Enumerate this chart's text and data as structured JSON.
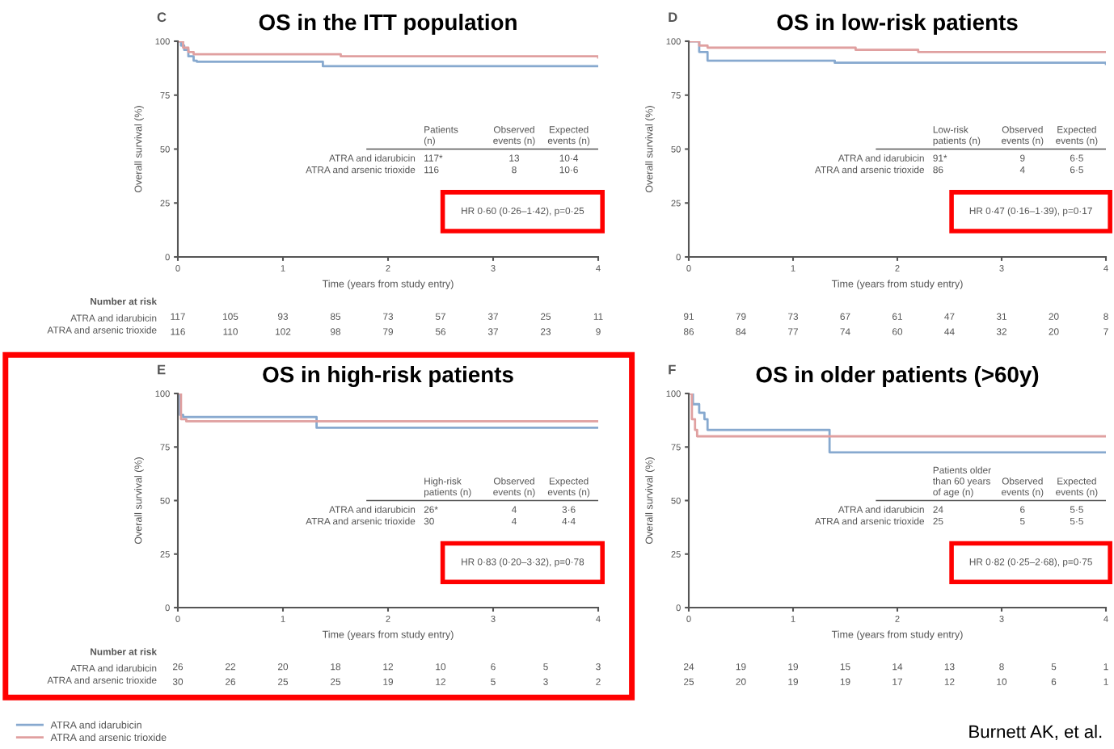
{
  "chart_data": [
    {
      "type": "step",
      "title": "OS in the ITT population",
      "xlabel": "Time (years from study entry)",
      "ylabel": "Overall survival (%)",
      "xlim": [
        0,
        4
      ],
      "xticks": [
        0,
        1,
        2,
        3,
        4
      ],
      "ylim": [
        0,
        100
      ],
      "yticks": [
        0,
        25,
        50,
        75,
        100
      ],
      "grid": false,
      "legend": "bottom left",
      "marker": "none",
      "line_style": "solid",
      "series": [
        {
          "name": "ATRA and idarubicin",
          "color": "#87a9cf",
          "x": [
            0,
            0.03,
            0.06,
            0.1,
            0.15,
            0.18,
            1.35,
            1.38,
            4
          ],
          "values": [
            100,
            98,
            96,
            93,
            91,
            90.5,
            90.5,
            88.4,
            88.4
          ]
        },
        {
          "name": "ATRA and arsenic trioxide",
          "color": "#e0a0a0",
          "x": [
            0,
            0.05,
            0.1,
            0.15,
            1.5,
            1.55,
            4
          ],
          "values": [
            100,
            97,
            95,
            94,
            94,
            93,
            92.5
          ]
        }
      ],
      "annotations": [
        "C",
        "117 105 93 85 73 57 37 25 11",
        "116 110 102 98 79 56 37 23 9",
        "HR 0·60 (0·26–1·42), p=0·25",
        "Patients\n(n)",
        "Observed\nevents (n)",
        "Expected\nevents (n)",
        "ATRA and idarubicin\nATRA and arsenic trioxide",
        "117*\n116",
        "13\n8",
        "10·4\n10·6",
        "Number at risk",
        "ATRA and idarubicin\nATRA and arsenic trioxide"
      ]
    },
    {
      "type": "step",
      "title": "OS in low-risk patients",
      "xlabel": "Time (years from study entry)",
      "ylabel": "Overall survival (%)",
      "xlim": [
        0,
        4
      ],
      "xticks": [
        0,
        1,
        2,
        3,
        4
      ],
      "ylim": [
        0,
        100
      ],
      "yticks": [
        0,
        25,
        50,
        75,
        100
      ],
      "grid": false,
      "marker": "none",
      "line_style": "solid",
      "series": [
        {
          "color": "#87a9cf",
          "x": [
            0,
            0.1,
            0.18,
            1.35,
            1.4,
            4
          ],
          "values": [
            100,
            95,
            91,
            91,
            90,
            89.5
          ]
        },
        {
          "color": "#e0a0a0",
          "x": [
            0,
            0.1,
            0.18,
            1.55,
            1.6,
            2.15,
            2.2,
            4
          ],
          "values": [
            100,
            98,
            97,
            97,
            96,
            96,
            95,
            95
          ]
        }
      ],
      "annotations": [
        "D",
        "91 79 73 67 61 47 31 20 8",
        "86 84 77 74 60 44 32 20 7",
        "HR 0·47 (0·16–1·39), p=0·17",
        "Low-risk\npatients (n)",
        "Observed\nevents (n)",
        "Expected\nevents (n)",
        "ATRA and idarubicin\nATRA and arsenic trioxide",
        "91*\n86",
        "9\n4",
        "6·5\n6·5"
      ]
    },
    {
      "type": "step",
      "title": "OS in high-risk patients",
      "xlabel": "Time (years from study entry)",
      "ylabel": "Overall survival (%)",
      "xlim": [
        0,
        4
      ],
      "xticks": [
        0,
        1,
        2,
        3,
        4
      ],
      "ylim": [
        0,
        100
      ],
      "yticks": [
        0,
        25,
        50,
        75,
        100
      ],
      "grid": false,
      "marker": "none",
      "line_style": "solid",
      "series": [
        {
          "color": "#87a9cf",
          "x": [
            0,
            0.02,
            0.05,
            1.3,
            1.32,
            4
          ],
          "values": [
            100,
            90,
            89,
            89,
            84,
            84
          ]
        },
        {
          "color": "#e0a0a0",
          "x": [
            0,
            0.03,
            0.08,
            4
          ],
          "values": [
            100,
            88,
            87,
            87
          ]
        }
      ],
      "annotations": [
        "E",
        "26 22 20 18 12 10 6 5 3",
        "30 26 25 25 19 12 5 3 2",
        "HR 0·83 (0·20–3·32), p=0·78",
        "High-risk\npatients (n)",
        "Observed\nevents (n)",
        "Expected\nevents (n)",
        "ATRA and idarubicin\nATRA and arsenic trioxide",
        "26*\n30",
        "4\n4",
        "3·6\n4·4",
        "Number at risk",
        "ATRA and idarubicin\nATRA and arsenic trioxide"
      ]
    },
    {
      "type": "step",
      "title": "OS in older patients (>60y)",
      "xlabel": "Time (years from study entry)",
      "ylabel": "Overall survival (%)",
      "xlim": [
        0,
        4
      ],
      "xticks": [
        0,
        1,
        2,
        3,
        4
      ],
      "ylim": [
        0,
        100
      ],
      "yticks": [
        0,
        25,
        50,
        75,
        100
      ],
      "grid": false,
      "marker": "none",
      "line_style": "solid",
      "series": [
        {
          "color": "#87a9cf",
          "x": [
            0,
            0.04,
            0.1,
            0.15,
            0.18,
            1.32,
            1.35,
            4
          ],
          "values": [
            100,
            95,
            91,
            88,
            83,
            83,
            72.5,
            72.5
          ]
        },
        {
          "color": "#e0a0a0",
          "x": [
            0,
            0.03,
            0.06,
            0.08,
            4
          ],
          "values": [
            100,
            88,
            83,
            80,
            80
          ]
        }
      ],
      "annotations": [
        "F",
        "24 19 19 15 14 13 8 5 1",
        "25 20 19 19 17 12 10 6 1",
        "HR 0·82 (0·25–2·68), p=0·75",
        "Patients older\nthan 60 years\nof age (n)",
        "Observed\nevents (n)",
        "Expected\nevents (n)",
        "ATRA and idarubicin\nATRA and arsenic trioxide",
        "24\n25",
        "6\n5",
        "5·5\n5·5",
        "Burnett AK, et al."
      ]
    }
  ]
}
